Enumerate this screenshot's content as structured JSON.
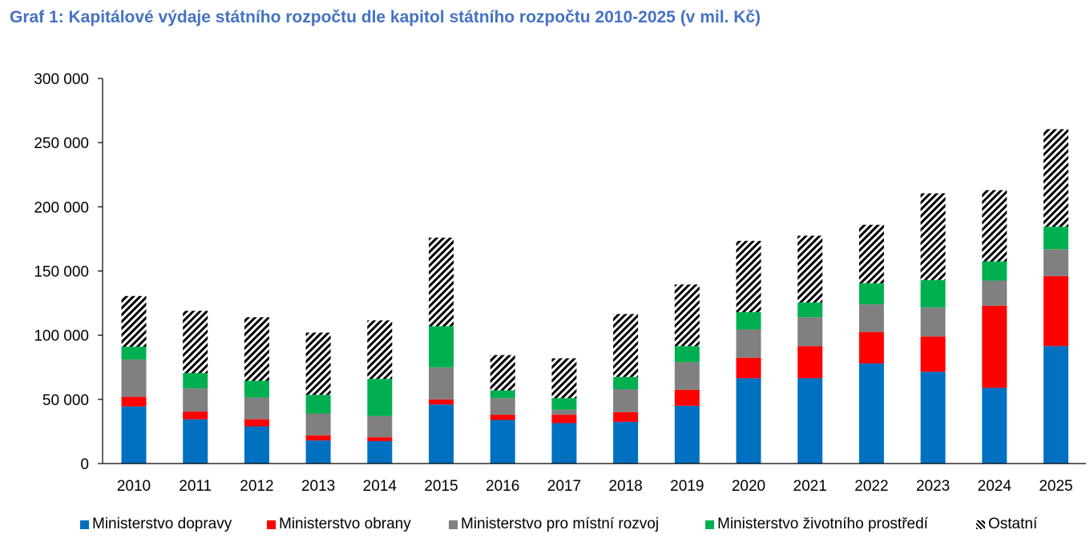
{
  "title": "Graf 1: Kapitálové výdaje státního rozpočtu dle kapitol státního rozpočtu 2010-2025 (v mil. Kč)",
  "chart_data": {
    "type": "bar",
    "stacked": true,
    "title": "Graf 1: Kapitálové výdaje státního rozpočtu dle kapitol státního rozpočtu 2010-2025 (v mil. Kč)",
    "xlabel": "",
    "ylabel": "",
    "ylim": [
      0,
      300000
    ],
    "yticks": [
      0,
      50000,
      100000,
      150000,
      200000,
      250000,
      300000
    ],
    "ytick_labels": [
      "0",
      "50 000",
      "100 000",
      "150 000",
      "200 000",
      "250 000",
      "300 000"
    ],
    "grid": false,
    "legend_position": "bottom",
    "categories": [
      "2010",
      "2011",
      "2012",
      "2013",
      "2014",
      "2015",
      "2016",
      "2017",
      "2018",
      "2019",
      "2020",
      "2021",
      "2022",
      "2023",
      "2024",
      "2025"
    ],
    "series": [
      {
        "name": "Ministerstvo dopravy",
        "color": "#0070C0",
        "pattern": "solid",
        "values": [
          44500,
          34500,
          29000,
          18000,
          17500,
          46000,
          34000,
          31500,
          32500,
          45000,
          66500,
          66500,
          78000,
          71500,
          59000,
          91500
        ]
      },
      {
        "name": "Ministerstvo obrany",
        "color": "#FF0000",
        "pattern": "solid",
        "values": [
          7500,
          6000,
          5500,
          4000,
          3000,
          4000,
          4000,
          6500,
          7500,
          12500,
          16000,
          25000,
          24500,
          27500,
          64000,
          54500
        ]
      },
      {
        "name": "Ministerstvo pro místní rozvoj",
        "color": "#808080",
        "pattern": "solid",
        "values": [
          29000,
          18000,
          17000,
          17000,
          16500,
          25000,
          13000,
          4000,
          18000,
          21500,
          22000,
          22500,
          21500,
          22500,
          19500,
          21000
        ]
      },
      {
        "name": "Ministerstvo životního prostředí",
        "color": "#00B050",
        "pattern": "solid",
        "values": [
          10000,
          12000,
          13000,
          14500,
          29000,
          32000,
          6000,
          9000,
          9500,
          12500,
          13500,
          11500,
          16500,
          21500,
          15000,
          17500
        ]
      },
      {
        "name": "Ostatní",
        "color": "#000000",
        "pattern": "hatch",
        "values": [
          39500,
          48500,
          49500,
          48500,
          45500,
          69000,
          27500,
          31000,
          49000,
          48000,
          55500,
          52000,
          45500,
          67500,
          55500,
          76000
        ]
      }
    ]
  }
}
